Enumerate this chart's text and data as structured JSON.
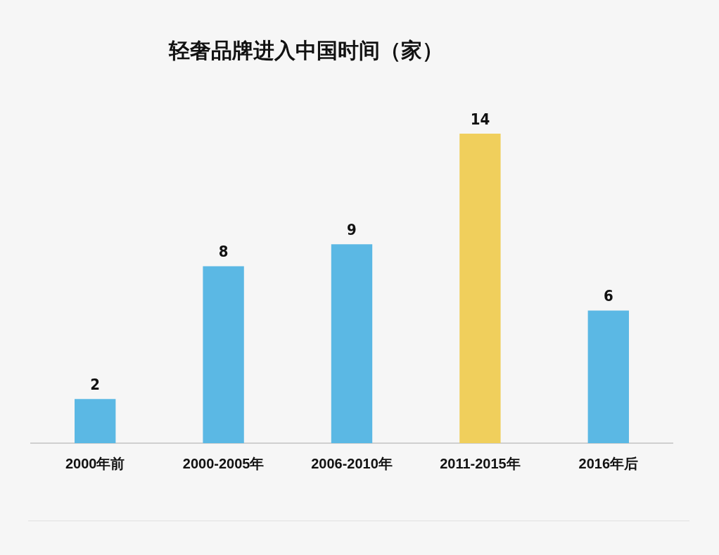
{
  "chart_data": {
    "type": "bar",
    "title": "轻奢品牌进入中国时间（家）",
    "categories": [
      "2000年前",
      "2000-2005年",
      "2006-2010年",
      "2011-2015年",
      "2016年后"
    ],
    "values": [
      2,
      8,
      9,
      14,
      6
    ],
    "colors": [
      "#5bb8e4",
      "#5bb8e4",
      "#5bb8e4",
      "#f0cf5c",
      "#5bb8e4"
    ],
    "data_labels": true,
    "grid": false,
    "legend": false
  }
}
